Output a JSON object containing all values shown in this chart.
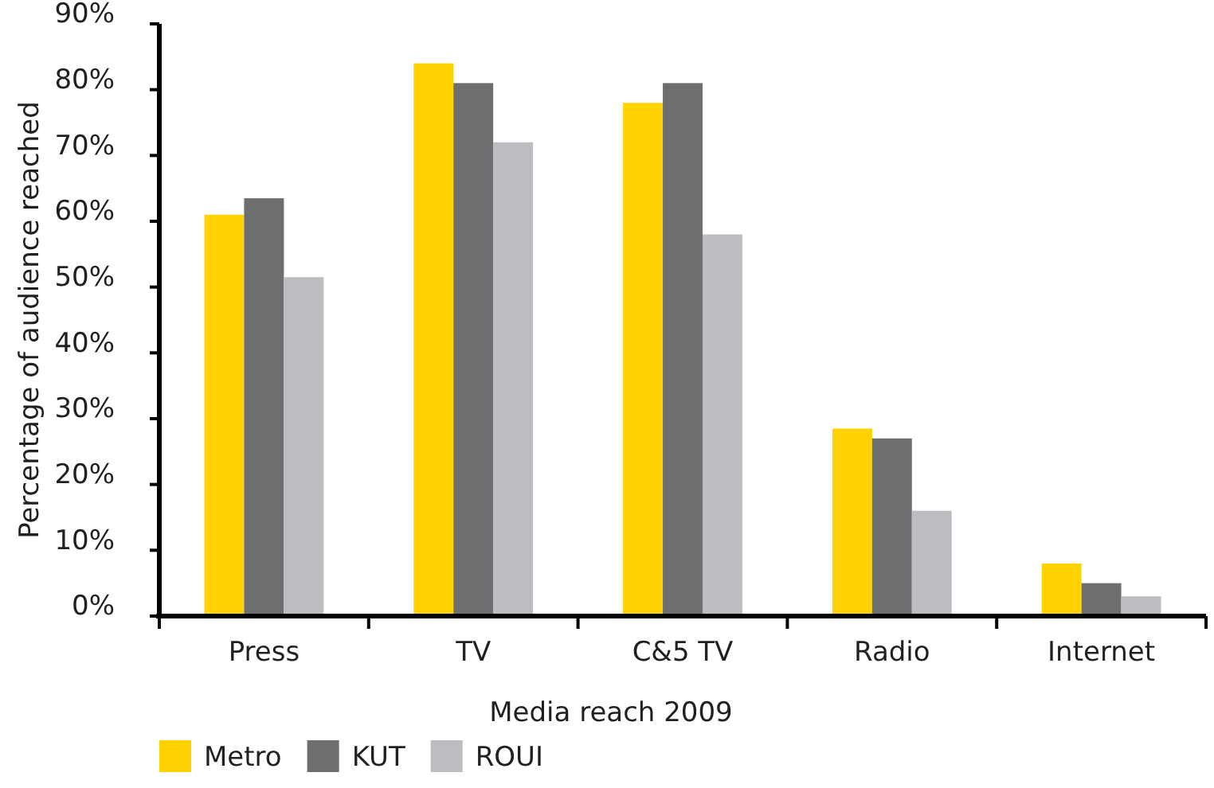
{
  "chart_data": {
    "type": "bar",
    "xlabel": "Media reach 2009",
    "ylabel": "Percentage of audience reached",
    "categories": [
      "Press",
      "TV",
      "C&5 TV",
      "Radio",
      "Internet"
    ],
    "series": [
      {
        "name": "Metro",
        "color": "#ffd200",
        "values": [
          61,
          84,
          78,
          28.5,
          8
        ]
      },
      {
        "name": "KUT",
        "color": "#6d6e70",
        "values": [
          63.5,
          81,
          81,
          27,
          5
        ]
      },
      {
        "name": "ROUI",
        "color": "#bcbdc0",
        "values": [
          51.5,
          72,
          58,
          16,
          3
        ]
      }
    ],
    "ylim": [
      0,
      90
    ],
    "yticks": [
      {
        "value": 0,
        "label": "0%"
      },
      {
        "value": 10,
        "label": "10%"
      },
      {
        "value": 20,
        "label": "20%"
      },
      {
        "value": 30,
        "label": "30%"
      },
      {
        "value": 40,
        "label": "40%"
      },
      {
        "value": 50,
        "label": "50%"
      },
      {
        "value": 60,
        "label": "60%"
      },
      {
        "value": 70,
        "label": "70%"
      },
      {
        "value": 80,
        "label": "80%"
      },
      {
        "value": 90,
        "label": "90%"
      }
    ],
    "grid": false,
    "legend": "bottom left"
  }
}
